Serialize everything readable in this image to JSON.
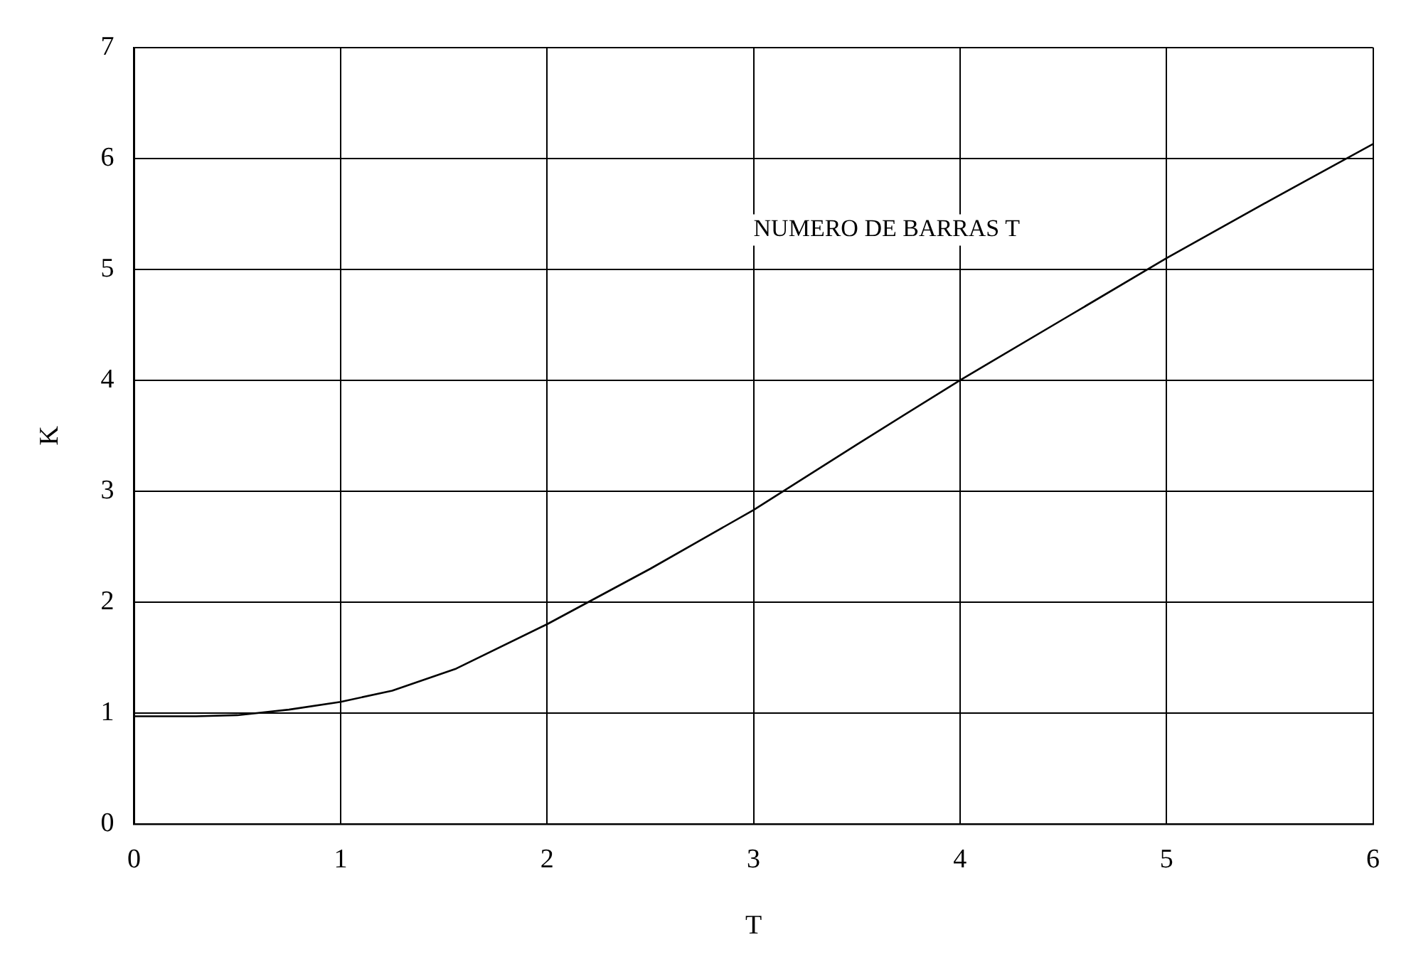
{
  "chart_data": {
    "type": "line",
    "xlabel": "T",
    "ylabel": "K",
    "x": [
      0,
      0.3,
      0.5,
      0.75,
      1,
      1.25,
      1.56,
      2,
      2.5,
      3,
      3.5,
      4,
      4.5,
      5,
      5.5,
      6
    ],
    "series": [
      {
        "color": "#000000",
        "values": [
          0.97,
          0.97,
          0.98,
          1.03,
          1.1,
          1.2,
          1.4,
          1.8,
          2.3,
          2.83,
          3.42,
          4.0,
          4.55,
          5.1,
          5.62,
          6.13
        ]
      }
    ],
    "xlim": [
      0,
      6
    ],
    "xticks": [
      0,
      1,
      2,
      3,
      4,
      5,
      6
    ],
    "ylim": [
      0,
      7
    ],
    "yticks": [
      0,
      1,
      2,
      3,
      4,
      5,
      6,
      7
    ],
    "annotations": [
      "NUMERO DE BARRAS T"
    ],
    "grid": true,
    "legend": false,
    "marker": "none",
    "line_style": "solid"
  }
}
